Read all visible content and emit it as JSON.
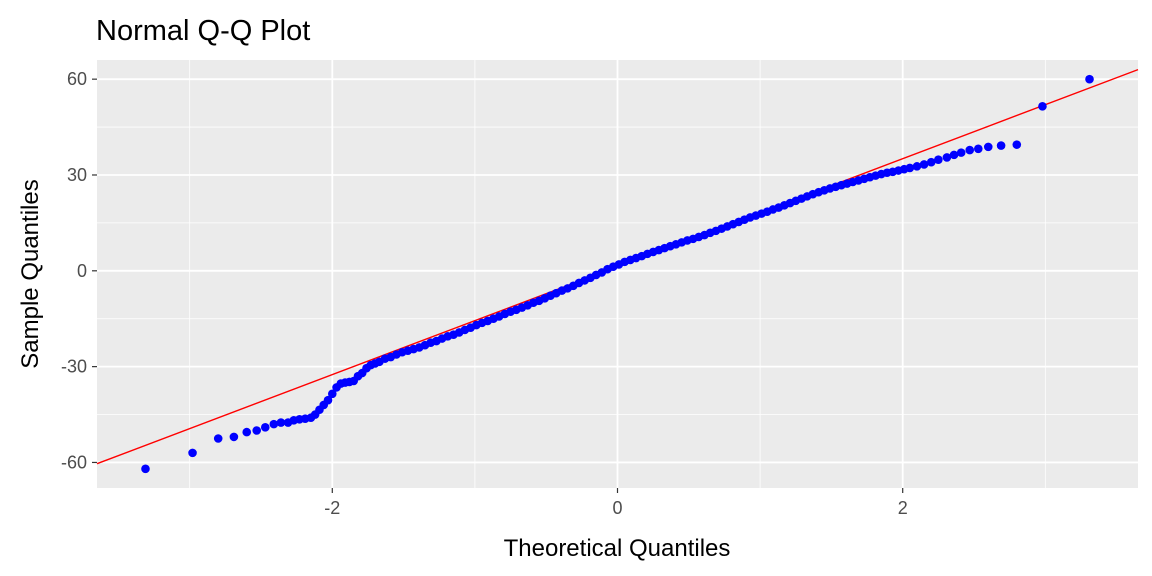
{
  "chart_data": {
    "type": "scatter",
    "title": "Normal Q-Q Plot",
    "xlabel": "Theoretical Quantiles",
    "ylabel": "Sample Quantiles",
    "xlim": [
      -3.65,
      3.65
    ],
    "ylim": [
      -68,
      66
    ],
    "x_ticks": [
      -2,
      0,
      2
    ],
    "x_tick_labels": [
      "-2",
      "0",
      "2"
    ],
    "y_ticks": [
      -60,
      -30,
      0,
      30,
      60
    ],
    "y_tick_labels": [
      "-60",
      "-30",
      "0",
      "30",
      "60"
    ],
    "grid": true,
    "legend": "none",
    "colors": {
      "panel_background": "#ebebeb",
      "grid_line": "#ffffff",
      "points": "#0000ff",
      "reference_line": "#ff0000"
    },
    "reference_line": {
      "intercept": 1.3,
      "slope": 16.9
    },
    "series": [
      {
        "points": [
          [
            -3.31,
            -62
          ],
          [
            -2.98,
            -57
          ],
          [
            -2.8,
            -52.5
          ],
          [
            -2.69,
            -52
          ],
          [
            -2.6,
            -50.5
          ],
          [
            -2.53,
            -50
          ],
          [
            -2.47,
            -49
          ],
          [
            -2.41,
            -48
          ],
          [
            -2.36,
            -47.5
          ],
          [
            -2.31,
            -47.5
          ],
          [
            -2.27,
            -46.8
          ],
          [
            -2.23,
            -46.5
          ],
          [
            -2.19,
            -46.3
          ],
          [
            -2.15,
            -46
          ],
          [
            -2.12,
            -45
          ],
          [
            -2.09,
            -43.5
          ],
          [
            -2.06,
            -42
          ],
          [
            -2.03,
            -40.5
          ],
          [
            -2.0,
            -38.5
          ],
          [
            -1.97,
            -36.5
          ],
          [
            -1.94,
            -35.3
          ],
          [
            -1.91,
            -35
          ],
          [
            -1.88,
            -34.8
          ],
          [
            -1.85,
            -34.5
          ],
          [
            -1.82,
            -33
          ],
          [
            -1.79,
            -32
          ],
          [
            -1.76,
            -30.5
          ],
          [
            -1.73,
            -29.5
          ],
          [
            -1.7,
            -29
          ],
          [
            -1.67,
            -28.5
          ],
          [
            -1.63,
            -27.5
          ],
          [
            -1.59,
            -27
          ],
          [
            -1.55,
            -26.2
          ],
          [
            -1.51,
            -25.5
          ],
          [
            -1.47,
            -25
          ],
          [
            -1.43,
            -24.5
          ],
          [
            -1.39,
            -24
          ],
          [
            -1.35,
            -23.3
          ],
          [
            -1.31,
            -22.5
          ],
          [
            -1.27,
            -22
          ],
          [
            -1.23,
            -21.2
          ],
          [
            -1.19,
            -20.5
          ],
          [
            -1.15,
            -20
          ],
          [
            -1.11,
            -19.3
          ],
          [
            -1.07,
            -18.5
          ],
          [
            -1.03,
            -17.8
          ],
          [
            -0.99,
            -17
          ],
          [
            -0.95,
            -16.3
          ],
          [
            -0.91,
            -15.7
          ],
          [
            -0.87,
            -15
          ],
          [
            -0.83,
            -14.3
          ],
          [
            -0.79,
            -13.5
          ],
          [
            -0.75,
            -12.8
          ],
          [
            -0.71,
            -12.2
          ],
          [
            -0.67,
            -11.5
          ],
          [
            -0.63,
            -10.8
          ],
          [
            -0.59,
            -10
          ],
          [
            -0.55,
            -9.4
          ],
          [
            -0.51,
            -8.6
          ],
          [
            -0.47,
            -7.8
          ],
          [
            -0.43,
            -7
          ],
          [
            -0.39,
            -6.2
          ],
          [
            -0.35,
            -5.5
          ],
          [
            -0.31,
            -4.7
          ],
          [
            -0.27,
            -3.8
          ],
          [
            -0.23,
            -3
          ],
          [
            -0.19,
            -2.2
          ],
          [
            -0.15,
            -1.3
          ],
          [
            -0.11,
            -0.5
          ],
          [
            -0.07,
            0.5
          ],
          [
            -0.03,
            1.3
          ],
          [
            0.01,
            2
          ],
          [
            0.05,
            2.8
          ],
          [
            0.09,
            3.4
          ],
          [
            0.13,
            4
          ],
          [
            0.17,
            4.6
          ],
          [
            0.21,
            5.3
          ],
          [
            0.25,
            5.9
          ],
          [
            0.29,
            6.5
          ],
          [
            0.33,
            7.1
          ],
          [
            0.37,
            7.7
          ],
          [
            0.41,
            8.3
          ],
          [
            0.45,
            8.9
          ],
          [
            0.49,
            9.5
          ],
          [
            0.53,
            10
          ],
          [
            0.57,
            10.6
          ],
          [
            0.61,
            11.2
          ],
          [
            0.65,
            11.9
          ],
          [
            0.69,
            12.5
          ],
          [
            0.73,
            13.2
          ],
          [
            0.77,
            13.9
          ],
          [
            0.81,
            14.6
          ],
          [
            0.85,
            15.3
          ],
          [
            0.89,
            16
          ],
          [
            0.93,
            16.7
          ],
          [
            0.97,
            17.3
          ],
          [
            1.01,
            17.9
          ],
          [
            1.05,
            18.5
          ],
          [
            1.09,
            19.2
          ],
          [
            1.13,
            19.8
          ],
          [
            1.17,
            20.5
          ],
          [
            1.21,
            21.2
          ],
          [
            1.25,
            21.9
          ],
          [
            1.29,
            22.6
          ],
          [
            1.33,
            23.3
          ],
          [
            1.37,
            24
          ],
          [
            1.41,
            24.6
          ],
          [
            1.45,
            25.2
          ],
          [
            1.49,
            25.8
          ],
          [
            1.53,
            26.3
          ],
          [
            1.57,
            26.8
          ],
          [
            1.61,
            27.3
          ],
          [
            1.65,
            27.8
          ],
          [
            1.69,
            28.3
          ],
          [
            1.73,
            28.8
          ],
          [
            1.77,
            29.3
          ],
          [
            1.81,
            29.8
          ],
          [
            1.85,
            30.3
          ],
          [
            1.89,
            30.7
          ],
          [
            1.93,
            31
          ],
          [
            1.97,
            31.4
          ],
          [
            2.01,
            31.8
          ],
          [
            2.05,
            32.2
          ],
          [
            2.1,
            32.7
          ],
          [
            2.15,
            33.3
          ],
          [
            2.2,
            34
          ],
          [
            2.25,
            34.8
          ],
          [
            2.31,
            35.5
          ],
          [
            2.36,
            36.3
          ],
          [
            2.41,
            37
          ],
          [
            2.47,
            37.8
          ],
          [
            2.53,
            38.2
          ],
          [
            2.6,
            38.8
          ],
          [
            2.69,
            39.2
          ],
          [
            2.8,
            39.5
          ],
          [
            2.98,
            51.5
          ],
          [
            3.31,
            60
          ]
        ]
      }
    ]
  }
}
